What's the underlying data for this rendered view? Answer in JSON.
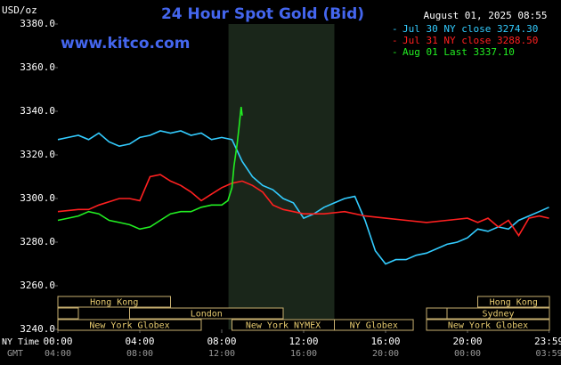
{
  "chart_data": {
    "type": "line",
    "title": "24 Hour Spot Gold (Bid)",
    "website": "www.kitco.com",
    "timestamp": "August 01, 2025 08:55",
    "ylabel": "USD/oz",
    "xlabel": "NY Time",
    "x2label": "GMT",
    "xlim": [
      0,
      24
    ],
    "xticks": [
      {
        "value": 0,
        "label": "00:00"
      },
      {
        "value": 4,
        "label": "04:00"
      },
      {
        "value": 8,
        "label": "08:00"
      },
      {
        "value": 12,
        "label": "12:00"
      },
      {
        "value": 16,
        "label": "16:00"
      },
      {
        "value": 20,
        "label": "20:00"
      },
      {
        "value": 23.983,
        "label": "23:59"
      }
    ],
    "x2tick_labels": [
      "04:00",
      "08:00",
      "12:00",
      "16:00",
      "20:00",
      "00:00",
      "03:59"
    ],
    "ylim": [
      3240,
      3380
    ],
    "yticks": [
      {
        "value": 3240,
        "label": "3240.0"
      },
      {
        "value": 3260,
        "label": "3260.0"
      },
      {
        "value": 3280,
        "label": "3280.0"
      },
      {
        "value": 3300,
        "label": "3300.0"
      },
      {
        "value": 3320,
        "label": "3320.0"
      },
      {
        "value": 3340,
        "label": "3340.0"
      },
      {
        "value": 3360,
        "label": "3360.0"
      },
      {
        "value": 3380,
        "label": "3380.0"
      }
    ],
    "grid": false,
    "legend": "top-right",
    "shaded_range": [
      8.33,
      13.5
    ],
    "sessions": [
      {
        "label": "Hong Kong",
        "row": 0,
        "start": 0,
        "end": 5.5
      },
      {
        "label": "Hong Kong",
        "row": 0,
        "start": 20.5,
        "end": 24
      },
      {
        "label": null,
        "row": 1,
        "start": 0,
        "end": 1
      },
      {
        "label": "London",
        "row": 1,
        "start": 3.5,
        "end": 11
      },
      {
        "label": null,
        "row": 1,
        "start": 18,
        "end": 19
      },
      {
        "label": "Sydney",
        "row": 1,
        "start": 19,
        "end": 24
      },
      {
        "label": "New York Globex",
        "row": 2,
        "start": 0,
        "end": 7
      },
      {
        "label": "New York NYMEX",
        "row": 2,
        "start": 8.5,
        "end": 13.5
      },
      {
        "label": "NY Globex",
        "row": 2,
        "start": 13.5,
        "end": 17.35
      },
      {
        "label": "New York Globex",
        "row": 2,
        "start": 18,
        "end": 24
      }
    ],
    "series": [
      {
        "name": "Jul 30 NY close 3274.30",
        "color": "#33ccff",
        "x": [
          0,
          0.5,
          1,
          1.5,
          2,
          2.5,
          3,
          3.5,
          4,
          4.5,
          5,
          5.5,
          6,
          6.5,
          7,
          7.5,
          8,
          8.5,
          9,
          9.5,
          10,
          10.5,
          11,
          11.5,
          12,
          12.5,
          13,
          13.5,
          14,
          14.5,
          15,
          15.5,
          16,
          16.5,
          17,
          17.5,
          18,
          18.5,
          19,
          19.5,
          20,
          20.5,
          21,
          21.5,
          22,
          22.5,
          23,
          23.5,
          23.98
        ],
        "values": [
          3327,
          3328,
          3329,
          3327,
          3330,
          3326,
          3324,
          3325,
          3328,
          3329,
          3331,
          3330,
          3331,
          3329,
          3330,
          3327,
          3328,
          3327,
          3317,
          3310,
          3306,
          3304,
          3300,
          3298,
          3291,
          3293,
          3296,
          3298,
          3300,
          3301,
          3290,
          3276,
          3270,
          3272,
          3272,
          3274,
          3275,
          3277,
          3279,
          3280,
          3282,
          3286,
          3285,
          3287,
          3286,
          3290,
          3292,
          3294,
          3296
        ]
      },
      {
        "name": "Jul 31 NY close 3288.50",
        "color": "#ff2020",
        "x": [
          0,
          1,
          1.5,
          2,
          3,
          3.5,
          4,
          4.5,
          5,
          5.5,
          6,
          6.5,
          7,
          7.5,
          8,
          8.5,
          9,
          9.5,
          10,
          10.5,
          11,
          11.5,
          12,
          13,
          14,
          15,
          16,
          17,
          18,
          19,
          20,
          20.5,
          21,
          21.5,
          22,
          22.5,
          23,
          23.5,
          23.98
        ],
        "values": [
          3294,
          3295,
          3295,
          3297,
          3300,
          3300,
          3299,
          3310,
          3311,
          3308,
          3306,
          3303,
          3299,
          3302,
          3305,
          3307,
          3308,
          3306,
          3303,
          3297,
          3295,
          3294,
          3293,
          3293,
          3294,
          3292,
          3291,
          3290,
          3289,
          3290,
          3291,
          3289,
          3291,
          3287,
          3290,
          3283,
          3291,
          3292,
          3291
        ]
      },
      {
        "name": "Aug 01 Last 3337.10",
        "color": "#22ee22",
        "x": [
          0,
          0.5,
          1,
          1.5,
          2,
          2.5,
          3,
          3.5,
          4,
          4.5,
          5,
          5.5,
          6,
          6.5,
          7,
          7.5,
          8,
          8.3,
          8.5,
          8.6,
          8.75,
          8.85,
          8.95,
          9.0
        ],
        "values": [
          3290,
          3291,
          3292,
          3294,
          3293,
          3290,
          3289,
          3288,
          3286,
          3287,
          3290,
          3293,
          3294,
          3294,
          3296,
          3297,
          3297,
          3299,
          3305,
          3315,
          3325,
          3333,
          3342,
          3338
        ]
      }
    ]
  }
}
